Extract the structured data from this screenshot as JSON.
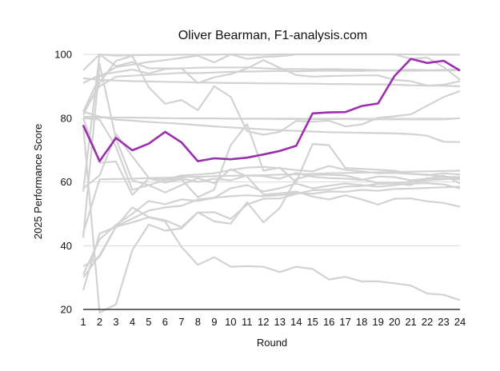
{
  "chart_data": {
    "type": "line",
    "title": "Oliver Bearman, F1-analysis.com",
    "xlabel": "Round",
    "ylabel": "2025 Performance Score",
    "x": [
      1,
      2,
      3,
      4,
      5,
      6,
      7,
      8,
      9,
      10,
      11,
      12,
      13,
      14,
      15,
      16,
      17,
      18,
      19,
      20,
      21,
      22,
      23,
      24
    ],
    "xlim": [
      1,
      24
    ],
    "ylim": [
      20,
      100
    ],
    "yticks": [
      20,
      40,
      60,
      80,
      100
    ],
    "grid": true,
    "legend": "none",
    "colors": {
      "highlight": "#9b2fae",
      "others": "#d2d2d2",
      "grid": "#cfcfcf"
    },
    "highlight": {
      "name": "Oliver Bearman",
      "values": [
        77.8,
        66.5,
        73.8,
        69.9,
        72.0,
        75.7,
        72.4,
        66.5,
        67.4,
        67.1,
        67.6,
        68.6,
        69.7,
        71.3,
        81.5,
        81.8,
        81.9,
        83.8,
        84.6,
        93.2,
        98.6,
        97.3,
        98.0,
        94.9
      ]
    },
    "series": [
      {
        "values": [
          80.5,
          80.3,
          80.2,
          80.2,
          80.1,
          80.0,
          79.9,
          79.9,
          79.9,
          79.8,
          79.8,
          79.8,
          79.7,
          79.7,
          79.7,
          79.7,
          79.7,
          79.6,
          79.6,
          79.6,
          79.6,
          79.6,
          79.6,
          80.0
        ]
      },
      {
        "values": [
          92.5,
          92.0,
          91.8,
          91.6,
          91.5,
          91.4,
          91.3,
          91.2,
          91.1,
          91.0,
          91.0,
          90.9,
          90.9,
          90.8,
          90.8,
          90.7,
          90.7,
          90.6,
          90.6,
          90.5,
          90.3,
          90.2,
          90.2,
          90.0
        ]
      },
      {
        "values": [
          95.0,
          100.0,
          99.6,
          99.7,
          99.8,
          99.8,
          99.9,
          99.9,
          99.9,
          100.0,
          99.9,
          99.9,
          100.0,
          100.0,
          100.0,
          100.0,
          100.0,
          100.0,
          100.0,
          100.0,
          100.0,
          99.9,
          99.9,
          99.9
        ]
      },
      {
        "values": [
          82.0,
          93.0,
          96.0,
          96.8,
          97.6,
          98.2,
          98.9,
          99.6,
          97.5,
          100.0,
          98.6,
          99.2,
          99.4,
          100.0,
          100.0,
          100.0,
          100.0,
          100.0,
          100.0,
          100.0,
          98.6,
          99.0,
          96.0,
          92.0
        ]
      },
      {
        "values": [
          91.0,
          93.5,
          94.4,
          95.2,
          94.0,
          95.4,
          95.6,
          91.0,
          92.8,
          93.8,
          95.6,
          98.2,
          95.8,
          93.5,
          93.0,
          93.2,
          93.3,
          93.4,
          93.4,
          92.0,
          91.6,
          90.2,
          90.5,
          91.6
        ]
      },
      {
        "values": [
          81.0,
          91.0,
          98.0,
          99.5,
          89.7,
          84.5,
          85.7,
          82.5,
          90.0,
          86.7,
          75.9,
          74.8,
          75.7,
          79.1,
          78.9,
          79.2,
          77.4,
          78.0,
          80.1,
          80.6,
          81.2,
          83.9,
          86.6,
          88.5
        ]
      },
      {
        "values": [
          82.0,
          80.5,
          79.5,
          79.2,
          78.8,
          78.5,
          78.2,
          77.8,
          77.4,
          77.1,
          76.8,
          76.5,
          76.2,
          76.0,
          75.8,
          75.6,
          75.5,
          75.4,
          75.3,
          75.2,
          75.0,
          74.5,
          72.6,
          72.5
        ]
      },
      {
        "values": [
          58.0,
          62.0,
          75.0,
          68.0,
          61.3,
          60.7,
          62.0,
          62.3,
          62.7,
          63.7,
          64.5,
          64.7,
          64.3,
          63.7,
          63.3,
          65.0,
          63.8,
          63.3,
          62.7,
          62.8,
          62.5,
          62.3,
          61.6,
          61.5
        ]
      },
      {
        "values": [
          80.0,
          66.0,
          66.4,
          55.9,
          61.1,
          59.8,
          60.8,
          55.2,
          57.6,
          71.5,
          78.1,
          63.5,
          64.5,
          59.9,
          71.9,
          71.5,
          64.4,
          64.1,
          63.8,
          63.5,
          62.6,
          62.1,
          62.7,
          62.3
        ]
      },
      {
        "values": [
          31.0,
          42.0,
          46.5,
          50.0,
          54.0,
          53.0,
          54.5,
          54.0,
          55.0,
          58.0,
          59.0,
          57.0,
          58.0,
          59.5,
          58.0,
          58.8,
          59.5,
          59.0,
          58.5,
          59.0,
          59.5,
          59.6,
          59.2,
          58.0
        ]
      },
      {
        "values": [
          33.5,
          36.5,
          46.0,
          48.5,
          51.0,
          52.0,
          52.5,
          54.5,
          55.0,
          55.5,
          55.8,
          55.5,
          55.8,
          56.5,
          56.3,
          57.0,
          56.9,
          57.5,
          57.2,
          57.8,
          57.9,
          58.1,
          58.3,
          58.5
        ]
      },
      {
        "values": [
          26.0,
          43.8,
          45.9,
          47.3,
          48.9,
          47.6,
          39.6,
          34.0,
          36.4,
          33.4,
          33.6,
          33.4,
          31.7,
          33.4,
          32.7,
          29.4,
          30.2,
          28.8,
          28.8,
          28.2,
          27.5,
          25.0,
          24.6,
          22.9
        ]
      },
      {
        "values": [
          30.0,
          37.0,
          46.0,
          52.0,
          49.0,
          48.0,
          45.8,
          50.5,
          47.6,
          46.9,
          53.6,
          47.3,
          51.8,
          60.9,
          62.2,
          62.2,
          62.0,
          60.8,
          59.7,
          59.5,
          59.0,
          61.2,
          61.0,
          60.8
        ]
      },
      {
        "values": [
          42.5,
          97.0,
          73.5,
          60.5,
          59.0,
          56.7,
          59.0,
          61.2,
          59.6,
          64.0,
          61.7,
          56.0,
          56.4,
          57.0,
          55.4,
          54.5,
          55.8,
          54.5,
          52.9,
          54.7,
          54.8,
          53.9,
          53.4,
          52.2
        ]
      },
      {
        "values": [
          57.0,
          100.0,
          96.3,
          97.6,
          95.6,
          95.6,
          95.6,
          95.8,
          95.9,
          95.9,
          95.9,
          95.6,
          95.4,
          95.4,
          95.3,
          95.4,
          95.3,
          95.2,
          95.0,
          95.0,
          95.2,
          95.0,
          95.1,
          95.3
        ]
      },
      {
        "values": [
          82.0,
          90.0,
          93.0,
          93.3,
          93.6,
          93.9,
          94.2,
          94.1,
          94.3,
          94.5,
          94.6,
          94.7,
          94.8,
          94.7,
          94.8,
          94.9,
          94.8,
          94.8,
          94.9,
          94.9,
          94.8,
          94.9,
          94.9,
          95.0
        ]
      },
      {
        "values": [
          78.0,
          19.0,
          21.6,
          38.6,
          46.6,
          44.7,
          45.4,
          50.4,
          50.5,
          48.4,
          52.9,
          54.7,
          54.8,
          56.2,
          57.4,
          57.6,
          58.5,
          58.7,
          59.4,
          59.6,
          60.1,
          60.5,
          60.8,
          61.2
        ]
      },
      {
        "values": [
          80.0,
          79.5,
          71.0,
          57.5,
          59.0,
          60.5,
          61.0,
          60.0,
          61.0,
          60.5,
          62.0,
          61.8,
          61.0,
          62.8,
          61.6,
          61.2,
          61.0,
          60.6,
          61.7,
          61.5,
          60.5,
          61.0,
          62.0,
          59.5
        ]
      },
      {
        "values": [
          44.0,
          60.8,
          60.9,
          61.0,
          61.2,
          61.3,
          61.5,
          61.6,
          61.8,
          61.9,
          62.0,
          62.1,
          62.3,
          62.4,
          62.5,
          62.7,
          62.8,
          62.9,
          63.0,
          63.1,
          63.2,
          63.3,
          63.4,
          63.5
        ]
      }
    ]
  }
}
